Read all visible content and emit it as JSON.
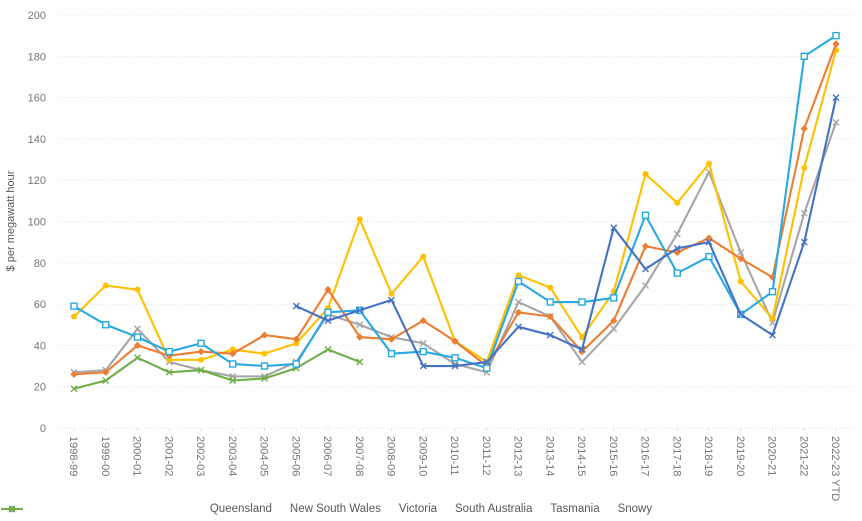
{
  "chart": {
    "y_axis_title": "$ per megawatt hour",
    "legend_position": "bottom"
  },
  "chart_data": {
    "type": "line",
    "title": "",
    "xlabel": "",
    "ylabel": "$ per megawatt hour",
    "ylim": [
      0,
      200
    ],
    "y_ticks": [
      0,
      20,
      40,
      60,
      80,
      100,
      120,
      140,
      160,
      180,
      200
    ],
    "grid": "horizontal-dotted",
    "legend_position": "bottom",
    "gridline_color": "#D9E1F0",
    "axis_text_color": "#767676",
    "categories": [
      "1998-99",
      "1999-00",
      "2000-01",
      "2001-02",
      "2002-03",
      "2003-04",
      "2004-05",
      "2005-06",
      "2006-07",
      "2007-08",
      "2008-09",
      "2009-10",
      "2010-11",
      "2011-12",
      "2012-13",
      "2013-14",
      "2014-15",
      "2015-16",
      "2016-17",
      "2017-18",
      "2018-19",
      "2019-20",
      "2020-21",
      "2021-22",
      "2022-23 YTD"
    ],
    "series": [
      {
        "name": "Queensland",
        "color": "#27A9E1",
        "marker": "square",
        "values": [
          59,
          50,
          44,
          37,
          41,
          31,
          30,
          31,
          56,
          57,
          36,
          37,
          34,
          29,
          71,
          61,
          61,
          63,
          103,
          75,
          83,
          55,
          66,
          180,
          190
        ]
      },
      {
        "name": "New South Wales",
        "color": "#ED7D31",
        "marker": "diamond",
        "values": [
          26,
          27,
          40,
          35,
          37,
          36,
          45,
          43,
          67,
          44,
          43,
          52,
          42,
          30,
          56,
          54,
          37,
          52,
          88,
          85,
          92,
          82,
          73,
          145,
          186
        ]
      },
      {
        "name": "Victoria",
        "color": "#A6A6A6",
        "marker": "x",
        "values": [
          27,
          28,
          48,
          32,
          28,
          25,
          25,
          32,
          55,
          50,
          44,
          41,
          31,
          27,
          61,
          54,
          32,
          48,
          69,
          94,
          124,
          85,
          51,
          104,
          148
        ]
      },
      {
        "name": "South Australia",
        "color": "#FFC000",
        "marker": "circle",
        "values": [
          54,
          69,
          67,
          33,
          33,
          38,
          36,
          41,
          58,
          101,
          65,
          83,
          42,
          32,
          74,
          68,
          44,
          66,
          123,
          109,
          128,
          71,
          53,
          126,
          183
        ]
      },
      {
        "name": "Tasmania",
        "color": "#4472C4",
        "marker": "x",
        "values": [
          null,
          null,
          null,
          null,
          null,
          null,
          null,
          59,
          52,
          57,
          62,
          30,
          30,
          32,
          49,
          45,
          38,
          97,
          77,
          87,
          90,
          55,
          45,
          90,
          160
        ]
      },
      {
        "name": "Snowy",
        "color": "#70AD47",
        "marker": "x",
        "values": [
          19,
          23,
          34,
          27,
          28,
          23,
          24,
          29,
          38,
          32,
          null,
          null,
          null,
          null,
          null,
          null,
          null,
          null,
          null,
          null,
          null,
          null,
          null,
          null,
          null
        ]
      }
    ]
  }
}
